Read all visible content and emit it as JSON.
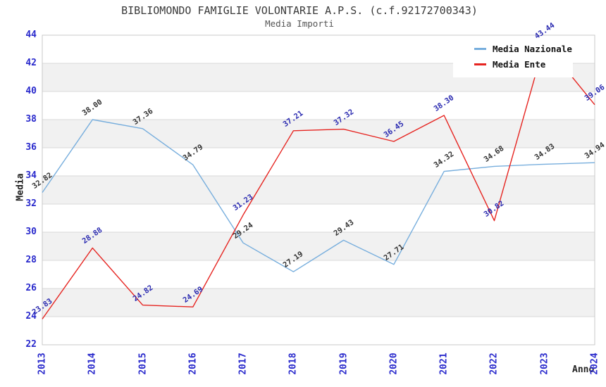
{
  "chart_data": {
    "type": "line",
    "title": "BIBLIOMONDO FAMIGLIE VOLONTARIE A.P.S. (c.f.92172700343)",
    "subtitle": "Media Importi",
    "xlabel": "Anno",
    "ylabel": "Media",
    "categories": [
      "2013",
      "2014",
      "2015",
      "2016",
      "2017",
      "2018",
      "2019",
      "2020",
      "2021",
      "2022",
      "2023",
      "2024"
    ],
    "y_ticks": [
      22,
      24,
      26,
      28,
      30,
      32,
      34,
      36,
      38,
      40,
      42,
      44
    ],
    "ylim": [
      22,
      44
    ],
    "grid": true,
    "legend_position": "top-right",
    "series": [
      {
        "name": "Media Nazionale",
        "color": "#77aedd",
        "label_color": "#333333",
        "values": [
          32.82,
          38.0,
          37.36,
          34.79,
          29.24,
          27.19,
          29.43,
          27.71,
          34.32,
          34.68,
          34.83,
          34.94
        ]
      },
      {
        "name": "Media Ente",
        "color": "#e62420",
        "label_color": "#2a2ab0",
        "values": [
          23.83,
          28.88,
          24.82,
          24.69,
          31.23,
          37.21,
          37.32,
          36.45,
          38.3,
          30.82,
          43.44,
          39.06
        ]
      }
    ],
    "colors": {
      "tick_label": "#2929cc",
      "band": "#f1f1f1",
      "grid_line": "#d9d9d9",
      "plot_border": "#c9c9c9"
    }
  }
}
